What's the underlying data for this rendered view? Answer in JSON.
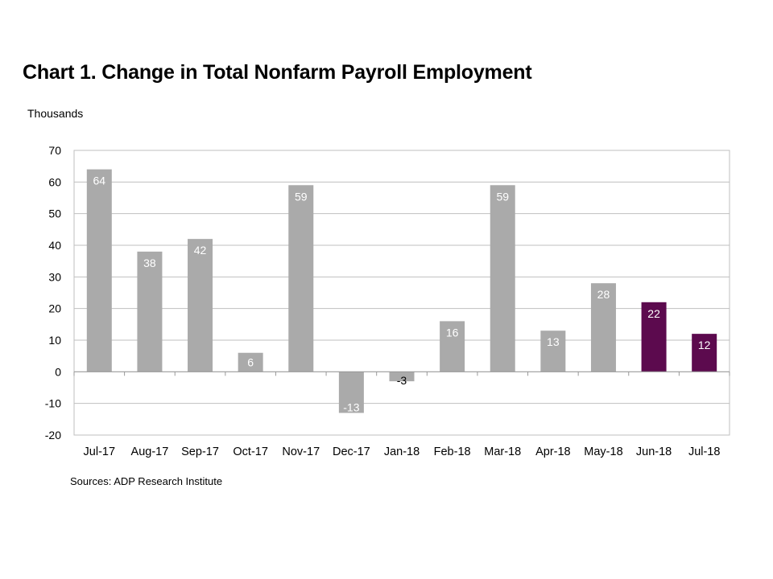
{
  "chart_data": {
    "type": "bar",
    "title": "Chart 1. Change in Total Nonfarm Payroll Employment",
    "ylabel": "Thousands",
    "xlabel": "",
    "source": "Sources: ADP Research Institute",
    "ylim": [
      -20,
      70
    ],
    "yticks": [
      70,
      60,
      50,
      40,
      30,
      20,
      10,
      0,
      -10,
      -20
    ],
    "grid": true,
    "categories": [
      "Jul-17",
      "Aug-17",
      "Sep-17",
      "Oct-17",
      "Nov-17",
      "Dec-17",
      "Jan-18",
      "Feb-18",
      "Mar-18",
      "Apr-18",
      "May-18",
      "Jun-18",
      "Jul-18"
    ],
    "values": [
      64,
      38,
      42,
      6,
      59,
      -13,
      -3,
      16,
      59,
      13,
      28,
      22,
      12
    ],
    "data_labels": [
      "64",
      "38",
      "42",
      "6",
      "59",
      "-13",
      "-3",
      "16",
      "59",
      "13",
      "28",
      "22",
      "12"
    ],
    "bar_colors": [
      "#aaaaaa",
      "#aaaaaa",
      "#aaaaaa",
      "#aaaaaa",
      "#aaaaaa",
      "#aaaaaa",
      "#aaaaaa",
      "#aaaaaa",
      "#aaaaaa",
      "#aaaaaa",
      "#aaaaaa",
      "#5c0a4e",
      "#5c0a4e"
    ],
    "colors": {
      "bar": "#aaaaaa",
      "highlight": "#5c0a4e",
      "grid": "#bfbfbf",
      "label": "#ffffff"
    }
  }
}
